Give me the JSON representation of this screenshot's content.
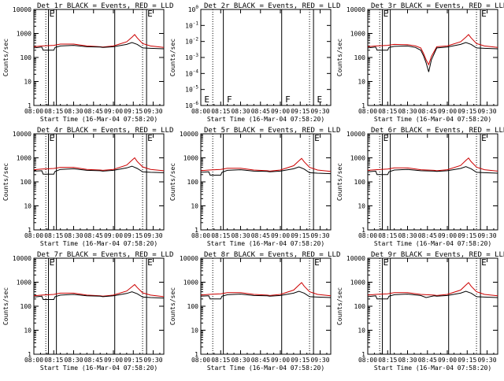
{
  "figure": {
    "xlabel": "Start Time (16-Mar-04 07:58:20)",
    "ylabel": "Counts/sec",
    "x_ticks": [
      "08:00",
      "08:15",
      "08:30",
      "08:45",
      "09:00",
      "09:15",
      "09:30"
    ],
    "x_tick_minutes": [
      0,
      15,
      30,
      45,
      60,
      75,
      90
    ],
    "x_range_minutes": [
      0,
      98
    ],
    "y_ticks": [
      "1",
      "10",
      "100",
      "1000",
      "10000"
    ],
    "y_tick_values": [
      1,
      10,
      100,
      1000,
      10000
    ],
    "y_range": [
      1,
      10000
    ],
    "y_ticks_dead": [
      "10^-6",
      "10^-5",
      "10^-4",
      "10^-3",
      "10^-2",
      "10^-1",
      "10^0"
    ],
    "y_tick_values_dead": [
      -6,
      -5,
      -4,
      -3,
      -2,
      -1,
      0
    ],
    "y_range_dead_log": [
      -6,
      0
    ],
    "colors": {
      "events": "#000000",
      "lld": "#cc0000"
    }
  },
  "chart_data": [
    {
      "type": "line",
      "title": "Det 1r BLACK = Events, RED = LLD",
      "xlabel": "Start Time (16-Mar-04 07:58:20)",
      "ylabel": "Counts/sec",
      "ylim": [
        1,
        10000
      ],
      "log_y": true,
      "vlines_dotted": [
        9,
        82
      ],
      "vlines_solid": [
        11,
        17,
        61,
        85
      ],
      "markers": [
        {
          "text": "E",
          "x": 11
        },
        {
          "text": "E",
          "x": 85
        }
      ],
      "series": [
        {
          "name": "Events",
          "color": "#000000",
          "x": [
            0,
            6,
            7,
            15,
            16,
            20,
            30,
            40,
            50,
            52,
            60,
            70,
            74,
            78,
            82,
            88,
            98
          ],
          "y": [
            250,
            270,
            200,
            200,
            260,
            300,
            320,
            280,
            270,
            260,
            280,
            350,
            420,
            350,
            250,
            240,
            230
          ]
        },
        {
          "name": "LLD",
          "color": "#cc0000",
          "x": [
            0,
            6,
            15,
            20,
            30,
            40,
            50,
            52,
            60,
            70,
            74,
            76,
            78,
            82,
            88,
            98
          ],
          "y": [
            280,
            300,
            320,
            360,
            360,
            300,
            280,
            270,
            300,
            450,
            700,
            900,
            650,
            380,
            300,
            260
          ]
        }
      ]
    },
    {
      "type": "line",
      "title": "Det 2r BLACK = Events, RED = LLD",
      "xlabel": "Start Time (16-Mar-04 07:58:20)",
      "ylabel": "Counts/sec",
      "ylim": [
        1e-06,
        1
      ],
      "log_y": true,
      "vlines_dotted": [
        9,
        82
      ],
      "vlines_solid": [
        17,
        61,
        85
      ],
      "markers": [
        {
          "text": "E",
          "x": 2
        },
        {
          "text": "F",
          "x": 19
        },
        {
          "text": "F",
          "x": 63
        },
        {
          "text": "E",
          "x": 87
        }
      ],
      "series": []
    },
    {
      "type": "line",
      "title": "Det 3r BLACK = Events, RED = LLD",
      "xlabel": "Start Time (16-Mar-04 07:58:20)",
      "ylabel": "Counts/sec",
      "ylim": [
        1,
        10000
      ],
      "log_y": true,
      "vlines_dotted": [
        9,
        82
      ],
      "vlines_solid": [
        11,
        17,
        61,
        85
      ],
      "markers": [
        {
          "text": "E",
          "x": 11
        },
        {
          "text": "E",
          "x": 85
        }
      ],
      "series": [
        {
          "name": "Events",
          "color": "#000000",
          "x": [
            0,
            6,
            7,
            15,
            16,
            20,
            30,
            36,
            40,
            42,
            44,
            46,
            48,
            52,
            60,
            70,
            74,
            78,
            82,
            88,
            98
          ],
          "y": [
            250,
            270,
            200,
            200,
            260,
            290,
            300,
            260,
            200,
            120,
            60,
            25,
            80,
            250,
            270,
            350,
            420,
            350,
            250,
            240,
            230
          ]
        },
        {
          "name": "LLD",
          "color": "#cc0000",
          "x": [
            0,
            6,
            15,
            20,
            30,
            36,
            40,
            42,
            44,
            46,
            48,
            52,
            60,
            70,
            74,
            76,
            78,
            82,
            88,
            98
          ],
          "y": [
            280,
            300,
            320,
            350,
            340,
            300,
            250,
            150,
            80,
            50,
            110,
            280,
            300,
            450,
            700,
            900,
            650,
            380,
            300,
            260
          ]
        }
      ]
    },
    {
      "type": "line",
      "title": "Det 4r BLACK = Events, RED = LLD",
      "xlabel": "Start Time (16-Mar-04 07:58:20)",
      "ylabel": "Counts/sec",
      "ylim": [
        1,
        10000
      ],
      "log_y": true,
      "vlines_dotted": [
        9,
        82
      ],
      "vlines_solid": [
        11,
        17,
        61,
        85
      ],
      "markers": [
        {
          "text": "E",
          "x": 11
        },
        {
          "text": "E",
          "x": 85
        }
      ],
      "series": [
        {
          "name": "Events",
          "color": "#000000",
          "x": [
            0,
            6,
            7,
            15,
            16,
            20,
            30,
            40,
            50,
            52,
            60,
            70,
            74,
            78,
            82,
            88,
            98
          ],
          "y": [
            280,
            290,
            210,
            210,
            270,
            330,
            350,
            300,
            290,
            280,
            300,
            380,
            450,
            360,
            260,
            250,
            240
          ]
        },
        {
          "name": "LLD",
          "color": "#cc0000",
          "x": [
            0,
            6,
            15,
            20,
            30,
            40,
            50,
            52,
            60,
            70,
            74,
            76,
            78,
            82,
            88,
            98
          ],
          "y": [
            320,
            340,
            360,
            400,
            400,
            330,
            310,
            300,
            330,
            500,
            800,
            1000,
            700,
            420,
            330,
            290
          ]
        }
      ]
    },
    {
      "type": "line",
      "title": "Det 5r BLACK = Events, RED = LLD",
      "xlabel": "Start Time (16-Mar-04 07:58:20)",
      "ylabel": "Counts/sec",
      "ylim": [
        1,
        10000
      ],
      "log_y": true,
      "vlines_dotted": [
        9,
        82
      ],
      "vlines_solid": [
        17,
        61,
        85
      ],
      "markers": [
        {
          "text": "E",
          "x": 85
        }
      ],
      "series": [
        {
          "name": "Events",
          "color": "#000000",
          "x": [
            0,
            6,
            7,
            15,
            16,
            20,
            30,
            40,
            50,
            52,
            60,
            70,
            74,
            78,
            82,
            88,
            98
          ],
          "y": [
            250,
            260,
            190,
            190,
            250,
            300,
            320,
            280,
            270,
            260,
            280,
            350,
            420,
            340,
            240,
            230,
            220
          ]
        },
        {
          "name": "LLD",
          "color": "#cc0000",
          "x": [
            0,
            6,
            15,
            20,
            30,
            40,
            50,
            52,
            60,
            70,
            74,
            76,
            78,
            82,
            88,
            98
          ],
          "y": [
            290,
            310,
            330,
            370,
            370,
            310,
            290,
            280,
            310,
            470,
            750,
            950,
            680,
            400,
            310,
            270
          ]
        }
      ]
    },
    {
      "type": "line",
      "title": "Det 6r BLACK = Events, RED = LLD",
      "xlabel": "Start Time (16-Mar-04 07:58:20)",
      "ylabel": "Counts/sec",
      "ylim": [
        1,
        10000
      ],
      "log_y": true,
      "vlines_dotted": [
        9,
        82
      ],
      "vlines_solid": [
        11,
        17,
        61,
        85
      ],
      "markers": [
        {
          "text": "E",
          "x": 11
        },
        {
          "text": "E",
          "x": 85
        }
      ],
      "series": [
        {
          "name": "Events",
          "color": "#000000",
          "x": [
            0,
            6,
            7,
            15,
            16,
            20,
            30,
            40,
            50,
            52,
            60,
            70,
            74,
            78,
            82,
            88,
            98
          ],
          "y": [
            260,
            280,
            200,
            200,
            260,
            310,
            330,
            290,
            280,
            270,
            290,
            360,
            430,
            350,
            250,
            240,
            230
          ]
        },
        {
          "name": "LLD",
          "color": "#cc0000",
          "x": [
            0,
            6,
            15,
            20,
            30,
            40,
            50,
            52,
            60,
            70,
            74,
            76,
            78,
            82,
            88,
            98
          ],
          "y": [
            300,
            320,
            340,
            380,
            380,
            320,
            300,
            290,
            320,
            480,
            780,
            980,
            690,
            410,
            320,
            280
          ]
        }
      ]
    },
    {
      "type": "line",
      "title": "Det 7r BLACK = Events, RED = LLD",
      "xlabel": "Start Time (16-Mar-04 07:58:20)",
      "ylabel": "Counts/sec",
      "ylim": [
        1,
        10000
      ],
      "log_y": true,
      "vlines_dotted": [
        9,
        82
      ],
      "vlines_solid": [
        11,
        17,
        61,
        85
      ],
      "markers": [
        {
          "text": "E",
          "x": 11
        },
        {
          "text": "E",
          "x": 85
        }
      ],
      "series": [
        {
          "name": "Events",
          "color": "#000000",
          "x": [
            0,
            6,
            7,
            15,
            16,
            20,
            30,
            40,
            50,
            52,
            60,
            70,
            74,
            78,
            82,
            88,
            98
          ],
          "y": [
            240,
            260,
            190,
            190,
            250,
            290,
            310,
            270,
            260,
            250,
            270,
            340,
            400,
            330,
            240,
            230,
            220
          ]
        },
        {
          "name": "LLD",
          "color": "#cc0000",
          "x": [
            0,
            6,
            15,
            20,
            30,
            40,
            50,
            52,
            60,
            70,
            74,
            76,
            78,
            82,
            88,
            98
          ],
          "y": [
            270,
            290,
            310,
            350,
            350,
            290,
            270,
            260,
            290,
            430,
            650,
            800,
            600,
            360,
            290,
            250
          ]
        }
      ]
    },
    {
      "type": "line",
      "title": "Det 8r BLACK = Events, RED = LLD",
      "xlabel": "Start Time (16-Mar-04 07:58:20)",
      "ylabel": "Counts/sec",
      "ylim": [
        1,
        10000
      ],
      "log_y": true,
      "vlines_dotted": [
        9,
        82
      ],
      "vlines_solid": [
        17,
        61,
        85
      ],
      "markers": [
        {
          "text": "E",
          "x": 85
        }
      ],
      "series": [
        {
          "name": "Events",
          "color": "#000000",
          "x": [
            0,
            6,
            7,
            15,
            16,
            20,
            30,
            40,
            50,
            52,
            60,
            70,
            74,
            78,
            82,
            88,
            98
          ],
          "y": [
            260,
            270,
            200,
            200,
            260,
            300,
            320,
            280,
            270,
            260,
            280,
            350,
            420,
            350,
            250,
            240,
            230
          ]
        },
        {
          "name": "LLD",
          "color": "#cc0000",
          "x": [
            0,
            6,
            15,
            20,
            30,
            40,
            50,
            52,
            60,
            70,
            74,
            76,
            78,
            82,
            88,
            98
          ],
          "y": [
            290,
            310,
            330,
            370,
            370,
            310,
            290,
            280,
            310,
            470,
            760,
            960,
            680,
            400,
            310,
            270
          ]
        }
      ]
    },
    {
      "type": "line",
      "title": "Det 9r BLACK = Events, RED = LLD",
      "xlabel": "Start Time (16-Mar-04 07:58:20)",
      "ylabel": "Counts/sec",
      "ylim": [
        1,
        10000
      ],
      "log_y": true,
      "vlines_dotted": [
        9,
        82
      ],
      "vlines_solid": [
        11,
        17,
        61,
        85
      ],
      "markers": [
        {
          "text": "E",
          "x": 11
        },
        {
          "text": "E",
          "x": 85
        }
      ],
      "series": [
        {
          "name": "Events",
          "color": "#000000",
          "x": [
            0,
            6,
            7,
            15,
            16,
            20,
            30,
            40,
            44,
            50,
            52,
            60,
            70,
            74,
            78,
            82,
            88,
            98
          ],
          "y": [
            250,
            270,
            200,
            200,
            260,
            300,
            320,
            280,
            230,
            270,
            260,
            280,
            350,
            420,
            350,
            250,
            240,
            230
          ]
        },
        {
          "name": "LLD",
          "color": "#cc0000",
          "x": [
            0,
            6,
            15,
            20,
            30,
            40,
            50,
            52,
            60,
            70,
            74,
            76,
            78,
            82,
            88,
            98
          ],
          "y": [
            290,
            310,
            330,
            370,
            370,
            310,
            290,
            280,
            310,
            470,
            760,
            960,
            680,
            400,
            310,
            270
          ]
        }
      ]
    }
  ]
}
